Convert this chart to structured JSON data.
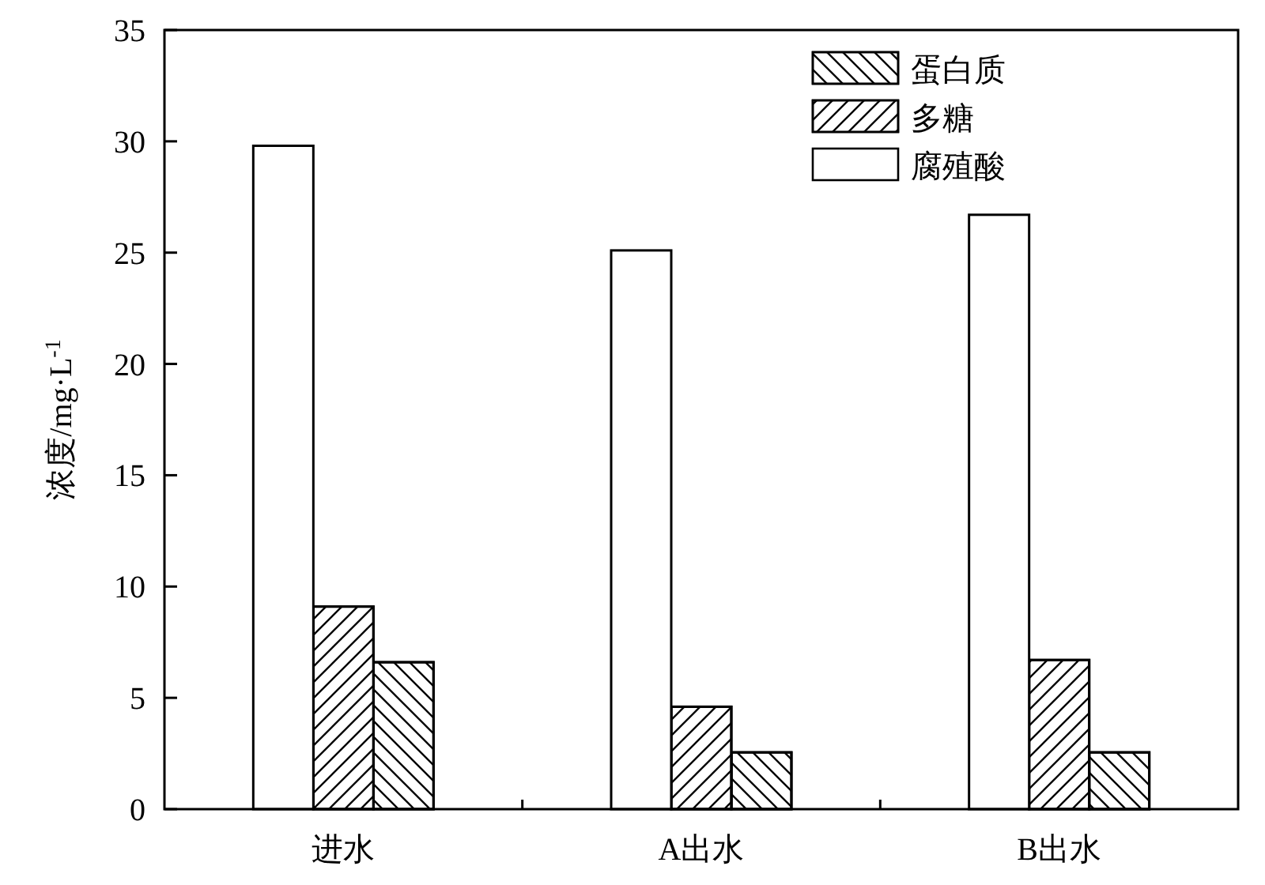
{
  "chart_data": {
    "type": "bar",
    "ylabel": "浓度/mg·L$^{-1}$",
    "categories": [
      "进水",
      "A出水",
      "B出水"
    ],
    "series": [
      {
        "name": "蛋白质",
        "color": "#ffffff",
        "values": [
          6.6,
          2.55,
          2.55
        ]
      },
      {
        "name": "多糖",
        "color": "#ffffff",
        "values": [
          9.1,
          4.6,
          6.7
        ]
      },
      {
        "name": "腐殖酸",
        "color": "#ffffff",
        "values": [
          29.8,
          25.1,
          26.7
        ]
      }
    ],
    "ylim": [
      0,
      35
    ],
    "yticks": [
      0,
      5,
      10,
      15,
      20,
      25,
      30,
      35
    ],
    "legend": "top right",
    "grid": false
  }
}
